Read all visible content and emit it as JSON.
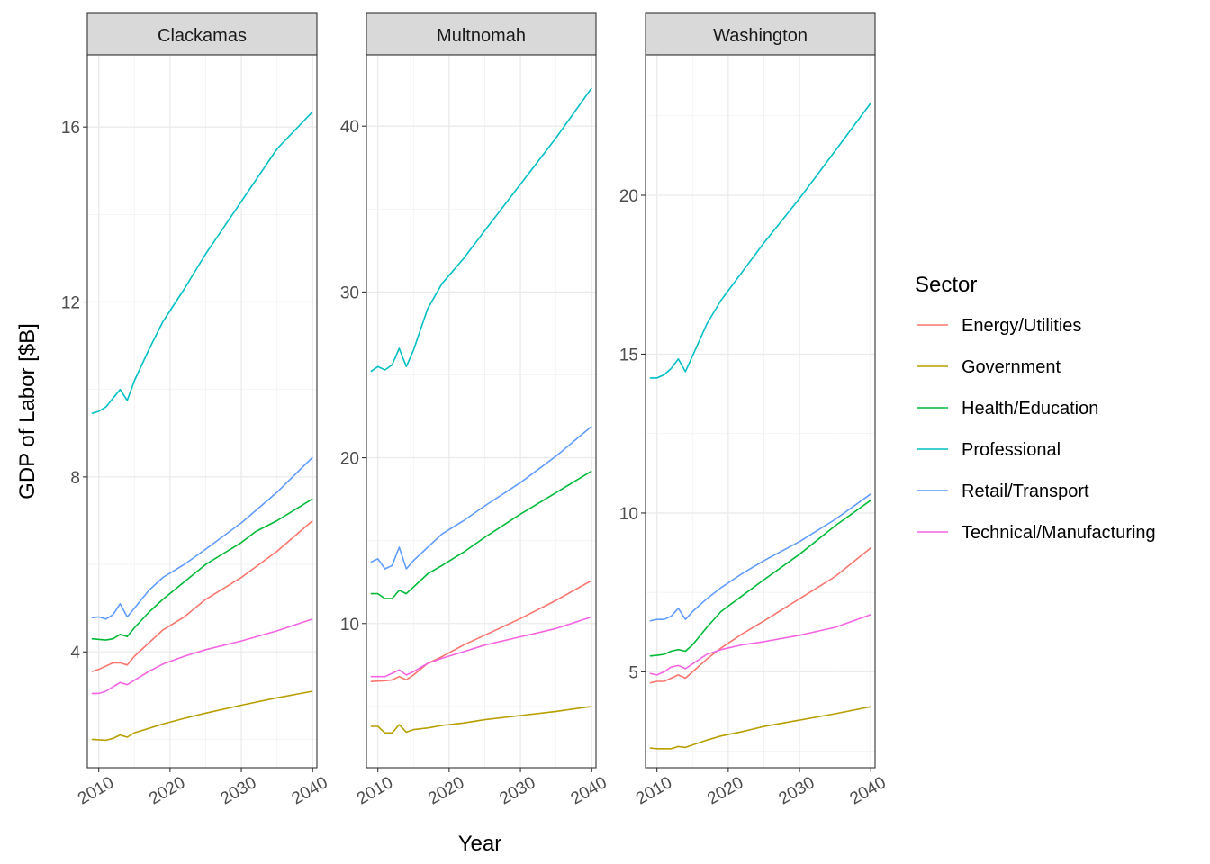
{
  "chart_data": {
    "type": "line",
    "xlabel": "Year",
    "ylabel": "GDP of Labor [$B]",
    "legend": {
      "title": "Sector",
      "placement": "right"
    },
    "grid": true,
    "x_ticks": [
      2010,
      2020,
      2030,
      2040
    ],
    "sector_names": [
      "Energy/Utilities",
      "Government",
      "Health/Education",
      "Professional",
      "Retail/Transport",
      "Technical/Manufacturing"
    ],
    "sector_colors": [
      "#F8766D",
      "#B79F00",
      "#00BA38",
      "#00BFC4",
      "#619CFF",
      "#F564E3"
    ],
    "panels": [
      {
        "title": "Clackamas",
        "xlim": [
          2008.4,
          2040.6
        ],
        "ylim": [
          1.35,
          17.65
        ],
        "y_ticks": [
          4,
          8,
          12,
          16
        ],
        "series": [
          {
            "name": "Energy/Utilities",
            "x": [
              2009,
              2010,
              2012,
              2013,
              2014,
              2015,
              2017,
              2019,
              2022,
              2025,
              2030,
              2035,
              2040
            ],
            "y": [
              3.55,
              3.6,
              3.75,
              3.75,
              3.7,
              3.9,
              4.2,
              4.5,
              4.8,
              5.2,
              5.7,
              6.3,
              7.0
            ]
          },
          {
            "name": "Government",
            "x": [
              2009,
              2011,
              2012,
              2013,
              2014,
              2015,
              2017,
              2019,
              2022,
              2025,
              2030,
              2035,
              2040
            ],
            "y": [
              2.0,
              1.98,
              2.02,
              2.1,
              2.05,
              2.15,
              2.25,
              2.35,
              2.48,
              2.6,
              2.78,
              2.95,
              3.1
            ]
          },
          {
            "name": "Health/Education",
            "x": [
              2009,
              2011,
              2012,
              2013,
              2014,
              2015,
              2017,
              2019,
              2022,
              2025,
              2028,
              2030,
              2032,
              2035,
              2038,
              2040
            ],
            "y": [
              4.3,
              4.27,
              4.3,
              4.4,
              4.35,
              4.55,
              4.9,
              5.2,
              5.6,
              6.0,
              6.3,
              6.5,
              6.75,
              7.0,
              7.3,
              7.5
            ]
          },
          {
            "name": "Professional",
            "x": [
              2009,
              2010,
              2011,
              2012,
              2013,
              2014,
              2015,
              2017,
              2019,
              2022,
              2025,
              2030,
              2035,
              2040
            ],
            "y": [
              9.45,
              9.5,
              9.6,
              9.8,
              10.0,
              9.75,
              10.2,
              10.9,
              11.55,
              12.3,
              13.1,
              14.3,
              15.5,
              16.35
            ]
          },
          {
            "name": "Retail/Transport",
            "x": [
              2009,
              2010,
              2011,
              2012,
              2013,
              2014,
              2015,
              2017,
              2019,
              2022,
              2025,
              2030,
              2035,
              2040
            ],
            "y": [
              4.78,
              4.8,
              4.75,
              4.85,
              5.1,
              4.8,
              5.0,
              5.4,
              5.7,
              6.0,
              6.35,
              6.95,
              7.65,
              8.45
            ]
          },
          {
            "name": "Technical/Manufacturing",
            "x": [
              2009,
              2010,
              2011,
              2012,
              2013,
              2014,
              2015,
              2017,
              2019,
              2022,
              2025,
              2030,
              2035,
              2040
            ],
            "y": [
              3.05,
              3.05,
              3.1,
              3.2,
              3.3,
              3.25,
              3.35,
              3.55,
              3.72,
              3.9,
              4.05,
              4.25,
              4.48,
              4.75
            ]
          }
        ]
      },
      {
        "title": "Multnomah",
        "xlim": [
          2008.4,
          2040.6
        ],
        "ylim": [
          1.3,
          44.3
        ],
        "y_ticks": [
          10,
          20,
          30,
          40
        ],
        "series": [
          {
            "name": "Energy/Utilities",
            "x": [
              2009,
              2011,
              2012,
              2013,
              2014,
              2015,
              2017,
              2019,
              2022,
              2025,
              2030,
              2035,
              2040
            ],
            "y": [
              6.5,
              6.55,
              6.6,
              6.8,
              6.6,
              6.9,
              7.6,
              8.0,
              8.7,
              9.3,
              10.3,
              11.4,
              12.6
            ]
          },
          {
            "name": "Government",
            "x": [
              2009,
              2010,
              2011,
              2012,
              2013,
              2014,
              2015,
              2017,
              2019,
              2022,
              2025,
              2030,
              2035,
              2040
            ],
            "y": [
              3.8,
              3.8,
              3.4,
              3.4,
              3.9,
              3.45,
              3.6,
              3.7,
              3.85,
              4.0,
              4.2,
              4.45,
              4.7,
              5.0
            ]
          },
          {
            "name": "Health/Education",
            "x": [
              2009,
              2010,
              2011,
              2012,
              2013,
              2014,
              2015,
              2017,
              2019,
              2022,
              2025,
              2030,
              2035,
              2040
            ],
            "y": [
              11.8,
              11.8,
              11.5,
              11.5,
              12.0,
              11.8,
              12.2,
              13.0,
              13.5,
              14.3,
              15.2,
              16.6,
              17.9,
              19.2
            ]
          },
          {
            "name": "Professional",
            "x": [
              2009,
              2010,
              2011,
              2012,
              2013,
              2014,
              2015,
              2017,
              2019,
              2022,
              2025,
              2030,
              2035,
              2040
            ],
            "y": [
              25.2,
              25.5,
              25.3,
              25.6,
              26.6,
              25.5,
              26.5,
              29.0,
              30.5,
              32.0,
              33.7,
              36.5,
              39.3,
              42.3
            ]
          },
          {
            "name": "Retail/Transport",
            "x": [
              2009,
              2010,
              2011,
              2012,
              2013,
              2014,
              2015,
              2017,
              2019,
              2022,
              2025,
              2030,
              2035,
              2040
            ],
            "y": [
              13.7,
              13.9,
              13.3,
              13.5,
              14.6,
              13.3,
              13.8,
              14.6,
              15.4,
              16.2,
              17.1,
              18.5,
              20.1,
              21.9
            ]
          },
          {
            "name": "Technical/Manufacturing",
            "x": [
              2009,
              2010,
              2011,
              2012,
              2013,
              2014,
              2015,
              2017,
              2019,
              2022,
              2025,
              2030,
              2035,
              2040
            ],
            "y": [
              6.8,
              6.8,
              6.8,
              7.0,
              7.2,
              6.9,
              7.1,
              7.6,
              7.9,
              8.3,
              8.7,
              9.2,
              9.7,
              10.4
            ]
          }
        ]
      },
      {
        "title": "Washington",
        "xlim": [
          2008.4,
          2040.6
        ],
        "ylim": [
          1.98,
          24.42
        ],
        "y_ticks": [
          5,
          10,
          15,
          20
        ],
        "series": [
          {
            "name": "Energy/Utilities",
            "x": [
              2009,
              2010,
              2011,
              2012,
              2013,
              2014,
              2015,
              2017,
              2019,
              2022,
              2025,
              2030,
              2035,
              2040
            ],
            "y": [
              4.65,
              4.7,
              4.7,
              4.8,
              4.9,
              4.8,
              5.0,
              5.4,
              5.75,
              6.2,
              6.6,
              7.3,
              8.0,
              8.9
            ]
          },
          {
            "name": "Government",
            "x": [
              2009,
              2010,
              2011,
              2012,
              2013,
              2014,
              2015,
              2017,
              2019,
              2022,
              2025,
              2030,
              2035,
              2040
            ],
            "y": [
              2.6,
              2.58,
              2.58,
              2.58,
              2.65,
              2.62,
              2.7,
              2.85,
              2.98,
              3.12,
              3.28,
              3.48,
              3.68,
              3.9
            ]
          },
          {
            "name": "Health/Education",
            "x": [
              2009,
              2010,
              2011,
              2012,
              2013,
              2014,
              2015,
              2017,
              2019,
              2022,
              2025,
              2030,
              2035,
              2040
            ],
            "y": [
              5.5,
              5.52,
              5.55,
              5.65,
              5.7,
              5.65,
              5.85,
              6.4,
              6.9,
              7.4,
              7.9,
              8.7,
              9.6,
              10.4
            ]
          },
          {
            "name": "Professional",
            "x": [
              2009,
              2010,
              2011,
              2012,
              2013,
              2014,
              2015,
              2017,
              2019,
              2022,
              2025,
              2030,
              2035,
              2040
            ],
            "y": [
              14.25,
              14.25,
              14.35,
              14.55,
              14.85,
              14.45,
              14.95,
              15.95,
              16.7,
              17.6,
              18.5,
              19.9,
              21.4,
              22.9
            ]
          },
          {
            "name": "Retail/Transport",
            "x": [
              2009,
              2010,
              2011,
              2012,
              2013,
              2014,
              2015,
              2017,
              2019,
              2022,
              2025,
              2030,
              2035,
              2040
            ],
            "y": [
              6.6,
              6.65,
              6.65,
              6.75,
              7.0,
              6.65,
              6.9,
              7.3,
              7.65,
              8.1,
              8.5,
              9.1,
              9.8,
              10.6
            ]
          },
          {
            "name": "Technical/Manufacturing",
            "x": [
              2009,
              2010,
              2011,
              2012,
              2013,
              2014,
              2015,
              2017,
              2019,
              2022,
              2025,
              2030,
              2035,
              2040
            ],
            "y": [
              4.95,
              4.9,
              5.0,
              5.15,
              5.2,
              5.1,
              5.25,
              5.55,
              5.7,
              5.85,
              5.95,
              6.15,
              6.4,
              6.8
            ]
          }
        ]
      }
    ]
  }
}
